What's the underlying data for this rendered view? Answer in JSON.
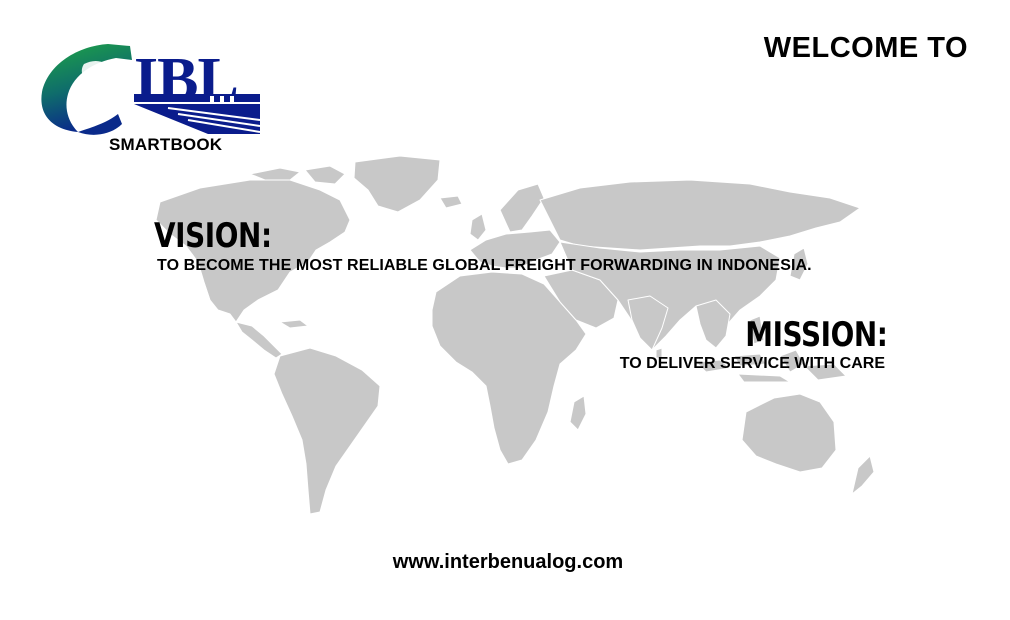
{
  "logo": {
    "letters": "IBL",
    "caption": "SMARTBOOK"
  },
  "welcome": "WELCOME TO",
  "vision": {
    "heading": "VISION:",
    "text": "TO BECOME THE MOST RELIABLE GLOBAL FREIGHT FORWARDING IN INDONESIA."
  },
  "mission": {
    "heading": "MISSION:",
    "text": "TO DELIVER SERVICE WITH CARE"
  },
  "website": "www.interbenualog.com",
  "colors": {
    "map_land": "#c8c8c8",
    "map_borders": "#ffffff",
    "logo_blue": "#0a1c8c",
    "logo_green": "#1a9a3a"
  },
  "icons": {
    "logo": "globe-logo-icon",
    "map": "world-map"
  }
}
